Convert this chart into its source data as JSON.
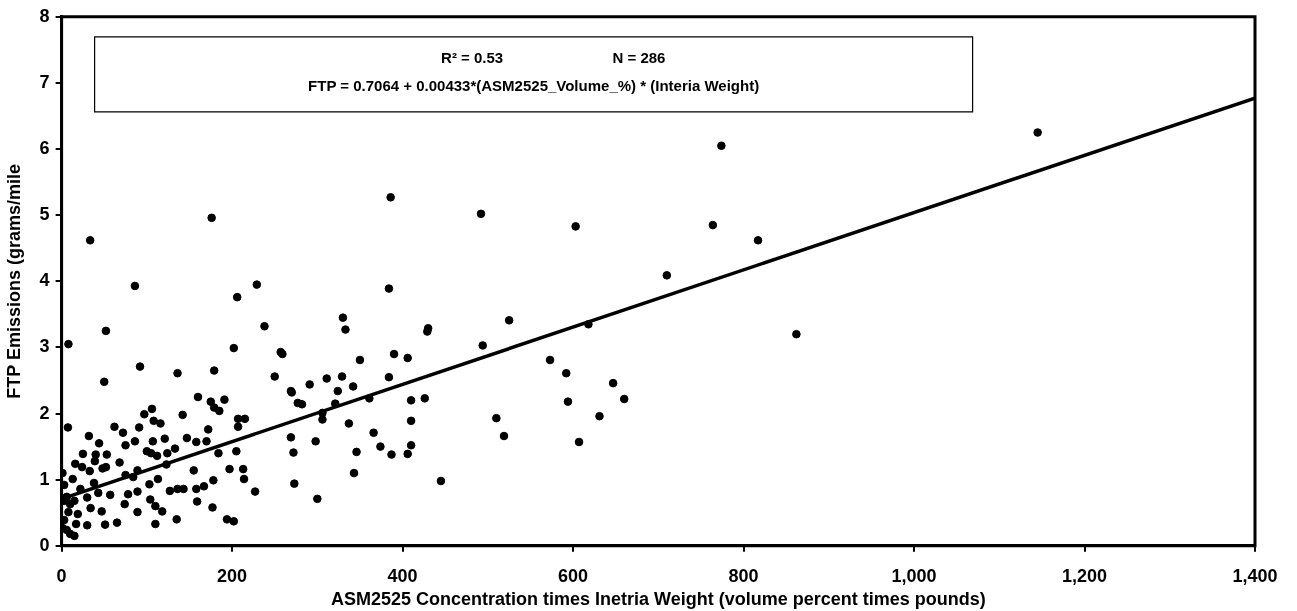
{
  "chart_data": {
    "type": "scatter",
    "xlabel": "ASM2525 Concentration times Inetria Weight (volume percent times pounds)",
    "ylabel": "FTP Emissions (grams/mile",
    "annotations": [
      "R² = 0.53",
      "N = 286",
      "FTP = 0.7064 + 0.00433*(ASM2525_Volume_%) * (Interia Weight)"
    ],
    "xlim": [
      0,
      1400
    ],
    "xticks": [
      0,
      200,
      400,
      600,
      800,
      {
        "value": 1000,
        "label": "1,000"
      },
      {
        "value": 1200,
        "label": "1,200"
      },
      {
        "value": 1400,
        "label": "1,400"
      }
    ],
    "ylim": [
      0,
      8
    ],
    "yticks": [
      0,
      1,
      2,
      3,
      4,
      5,
      6,
      7,
      8
    ],
    "legend": false,
    "marker": "circle",
    "series": [
      {
        "type": "scatter",
        "color": "#000000",
        "x": [
          774,
          764,
          817,
          862,
          1145,
          386,
          492,
          603,
          710,
          384,
          330,
          333,
          430,
          429,
          525,
          618,
          259,
          494,
          390,
          406,
          350,
          573,
          592,
          647,
          660,
          594,
          631,
          607,
          510,
          519,
          445,
          426,
          410,
          410,
          410,
          406,
          387,
          374,
          366,
          384,
          361,
          342,
          329,
          324,
          321,
          311,
          291,
          270,
          277,
          282,
          306,
          306,
          337,
          269,
          272,
          298,
          346,
          343,
          273,
          300,
          33.5,
          176,
          86,
          206,
          229,
          52,
          8,
          238,
          202,
          92,
          257,
          179,
          136,
          50,
          250,
          269,
          160,
          175,
          179,
          185,
          191,
          106,
          97,
          142,
          7.4,
          62,
          72,
          91,
          108,
          116,
          207,
          215,
          207,
          32,
          44,
          86,
          75,
          107,
          121,
          147,
          172,
          158,
          133,
          124,
          184,
          205,
          170,
          16,
          25,
          40,
          53,
          39,
          48,
          52,
          68,
          100,
          105,
          112,
          123,
          155,
          178,
          197,
          213,
          214,
          227,
          75,
          84,
          89,
          103,
          113,
          127,
          136,
          143,
          158,
          167,
          57,
          78,
          89,
          104,
          110,
          118,
          74,
          89,
          159,
          177,
          135,
          110,
          65,
          51,
          30,
          194,
          202,
          24,
          33,
          38,
          43,
          30,
          34,
          47,
          1,
          3,
          6,
          10,
          8,
          3,
          6,
          10,
          17,
          19,
          15,
          22,
          13,
          3,
          1,
          15
        ],
        "values": [
          6.05,
          4.85,
          4.62,
          3.2,
          6.25,
          5.27,
          5.02,
          4.83,
          4.09,
          3.89,
          3.45,
          3.27,
          3.29,
          3.24,
          3.41,
          3.35,
          2.9,
          3.03,
          2.9,
          2.84,
          2.81,
          2.81,
          2.61,
          2.46,
          2.22,
          2.18,
          1.96,
          1.57,
          1.93,
          1.66,
          0.98,
          2.23,
          2.2,
          1.89,
          1.52,
          1.39,
          1.38,
          1.5,
          1.71,
          2.55,
          2.23,
          2.41,
          2.56,
          2.34,
          2.15,
          2.53,
          2.44,
          2.32,
          2.16,
          2.14,
          2.01,
          1.91,
          1.85,
          1.64,
          1.41,
          1.58,
          1.42,
          1.1,
          0.94,
          0.71,
          4.62,
          4.96,
          3.93,
          3.76,
          3.95,
          3.25,
          3.05,
          3.32,
          2.99,
          2.71,
          2.93,
          2.65,
          2.61,
          2.48,
          2.56,
          2.34,
          2.25,
          2.18,
          2.09,
          2.04,
          2.21,
          2.07,
          1.99,
          1.98,
          1.79,
          1.8,
          1.71,
          1.79,
          1.89,
          1.85,
          1.92,
          1.92,
          1.8,
          1.66,
          1.55,
          1.58,
          1.52,
          1.58,
          1.62,
          1.63,
          1.76,
          1.57,
          1.47,
          1.4,
          1.4,
          1.43,
          1.58,
          1.24,
          1.39,
          1.38,
          1.38,
          1.28,
          1.17,
          1.19,
          1.26,
          1.43,
          1.4,
          1.36,
          1.23,
          1.14,
          0.99,
          1.16,
          1.16,
          1.01,
          0.82,
          1.07,
          1.04,
          1.14,
          0.93,
          1.01,
          0.83,
          0.86,
          0.86,
          0.86,
          0.9,
          0.77,
          0.78,
          0.82,
          0.7,
          0.6,
          0.52,
          0.63,
          0.51,
          0.67,
          0.58,
          0.4,
          0.33,
          0.35,
          0.32,
          0.31,
          0.4,
          0.37,
          1.19,
          1.13,
          0.95,
          0.8,
          0.73,
          0.57,
          0.52,
          1.1,
          0.92,
          0.74,
          0.63,
          0.51,
          0.39,
          0.24,
          0.18,
          0.33,
          0.48,
          0.68,
          0.86,
          1.01,
          0.68,
          0.27,
          0.15
        ]
      },
      {
        "type": "line",
        "color": "#000000",
        "marker": "none",
        "line_style": "solid",
        "x": [
          0,
          1400
        ],
        "values": [
          0.71,
          6.77
        ]
      }
    ]
  }
}
